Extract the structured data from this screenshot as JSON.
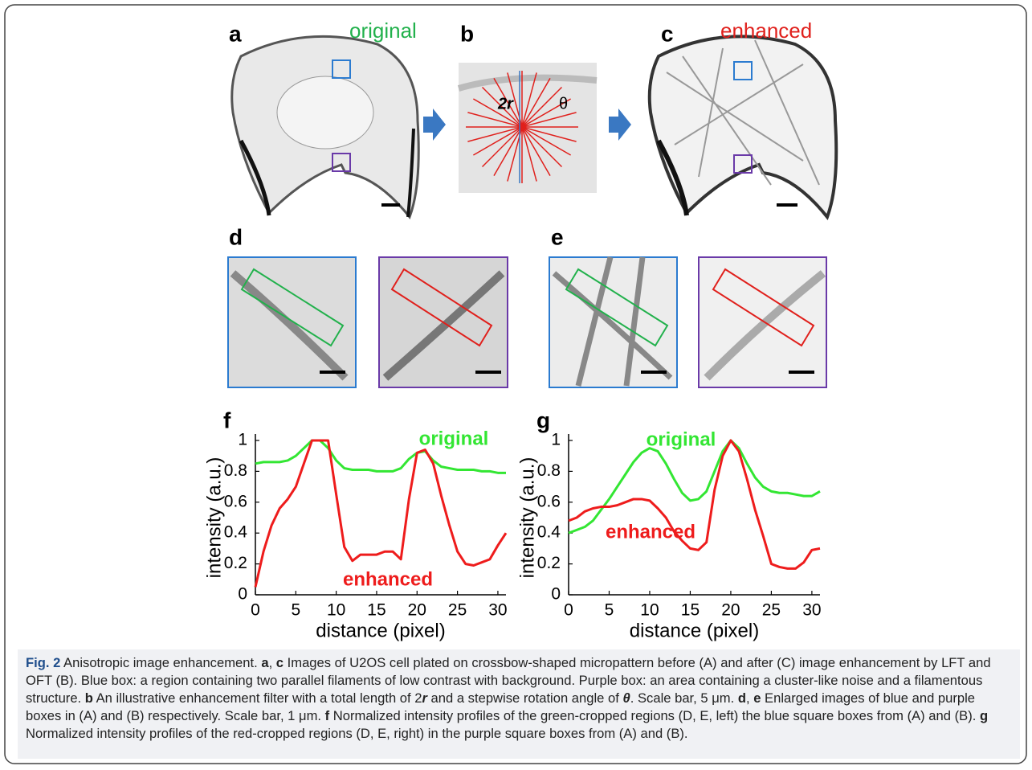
{
  "panel_labels": [
    "a",
    "b",
    "c",
    "d",
    "e"
  ],
  "annotations": {
    "a": "original",
    "b_length": "2r",
    "b_angle": "θ",
    "c": "enhanced"
  },
  "chart_data": [
    {
      "type": "line",
      "panel_label": "f",
      "xlabel": "distance (pixel)",
      "ylabel": "intensity (a.u.)",
      "x": [
        0,
        1,
        2,
        3,
        4,
        5,
        6,
        7,
        8,
        9,
        10,
        11,
        12,
        13,
        14,
        15,
        16,
        17,
        18,
        19,
        20,
        21,
        22,
        23,
        24,
        25,
        26,
        27,
        28,
        29,
        30,
        31
      ],
      "xlim": [
        0,
        31
      ],
      "xticks": [
        0,
        5,
        10,
        15,
        20,
        25,
        30
      ],
      "ylim": [
        0,
        1
      ],
      "yticks": [
        0,
        0.2,
        0.4,
        0.6,
        0.8,
        1
      ],
      "series": [
        {
          "name": "original",
          "color": "#33e633",
          "values": [
            0.85,
            0.86,
            0.86,
            0.86,
            0.87,
            0.9,
            0.95,
            1.0,
            1.0,
            0.95,
            0.87,
            0.82,
            0.81,
            0.81,
            0.81,
            0.8,
            0.8,
            0.8,
            0.82,
            0.88,
            0.92,
            0.93,
            0.87,
            0.83,
            0.82,
            0.81,
            0.81,
            0.81,
            0.8,
            0.8,
            0.79,
            0.79
          ]
        },
        {
          "name": "enhanced",
          "color": "#ee1c1c",
          "values": [
            0.05,
            0.28,
            0.45,
            0.56,
            0.62,
            0.7,
            0.85,
            1.0,
            1.0,
            1.0,
            0.65,
            0.31,
            0.22,
            0.26,
            0.26,
            0.26,
            0.28,
            0.28,
            0.23,
            0.62,
            0.92,
            0.94,
            0.85,
            0.64,
            0.45,
            0.28,
            0.2,
            0.19,
            0.21,
            0.23,
            0.32,
            0.4
          ]
        }
      ]
    },
    {
      "type": "line",
      "panel_label": "g",
      "xlabel": "distance (pixel)",
      "ylabel": "intensity (a.u.)",
      "x": [
        0,
        1,
        2,
        3,
        4,
        5,
        6,
        7,
        8,
        9,
        10,
        11,
        12,
        13,
        14,
        15,
        16,
        17,
        18,
        19,
        20,
        21,
        22,
        23,
        24,
        25,
        26,
        27,
        28,
        29,
        30,
        31
      ],
      "xlim": [
        0,
        31
      ],
      "xticks": [
        0,
        5,
        10,
        15,
        20,
        25,
        30
      ],
      "ylim": [
        0,
        1
      ],
      "yticks": [
        0,
        0.2,
        0.4,
        0.6,
        0.8,
        1
      ],
      "series": [
        {
          "name": "original",
          "color": "#33e633",
          "values": [
            0.4,
            0.42,
            0.44,
            0.48,
            0.55,
            0.62,
            0.7,
            0.78,
            0.86,
            0.92,
            0.95,
            0.93,
            0.85,
            0.75,
            0.66,
            0.61,
            0.62,
            0.67,
            0.8,
            0.93,
            1.0,
            0.95,
            0.85,
            0.76,
            0.7,
            0.67,
            0.66,
            0.66,
            0.65,
            0.64,
            0.64,
            0.67
          ]
        },
        {
          "name": "enhanced",
          "color": "#ee1c1c",
          "values": [
            0.48,
            0.5,
            0.54,
            0.56,
            0.57,
            0.57,
            0.58,
            0.6,
            0.62,
            0.62,
            0.61,
            0.56,
            0.5,
            0.41,
            0.35,
            0.3,
            0.29,
            0.34,
            0.68,
            0.9,
            1.0,
            0.93,
            0.75,
            0.55,
            0.38,
            0.2,
            0.18,
            0.17,
            0.17,
            0.21,
            0.29,
            0.3
          ]
        }
      ]
    }
  ],
  "caption": {
    "parts": [
      "Fig. 2",
      " Anisotropic image enhancement. ",
      "a",
      ", ",
      "c",
      " Images of U2OS cell plated on crossbow-shaped micropattern before (A) and after (C) image enhancement by LFT and OFT (B). Blue box: a region containing two parallel filaments of low contrast with background. Purple box: an area containing a cluster-like noise and a filamentous structure. ",
      "b",
      " An illustrative enhancement filter with a total length of 2",
      "r",
      " and a stepwise rotation angle of ",
      "θ",
      ". Scale bar, 5 μm. ",
      "d",
      ", ",
      "e",
      " Enlarged images of blue and purple boxes in (A) and (B) respectively. Scale bar, 1 μm. ",
      "f",
      " Normalized intensity profiles of the green-cropped regions (D, E, left) the blue square boxes from (A) and (B). ",
      "g",
      " Normalized intensity profiles of the red-cropped regions (D, E, right) in the purple square boxes from (A) and (B)."
    ]
  }
}
